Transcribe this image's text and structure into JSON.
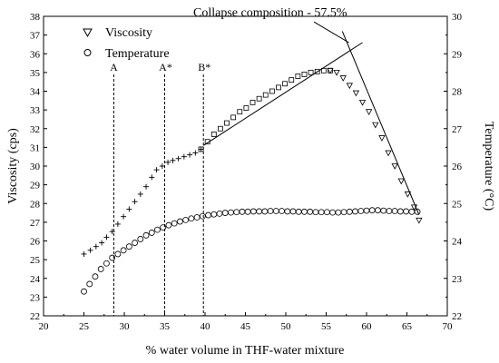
{
  "chart_data": {
    "type": "scatter",
    "xlabel": "% water volume in THF-water mixture",
    "ylabel_left": "Viscosity (cps)",
    "ylabel_right": "Temperature (°C)",
    "xlim": [
      20,
      70
    ],
    "ylim_left": [
      22,
      38
    ],
    "ylim_right": [
      22,
      30
    ],
    "x_ticks": [
      20,
      25,
      30,
      35,
      40,
      45,
      50,
      55,
      60,
      65,
      70
    ],
    "y_left_ticks": [
      22,
      23,
      24,
      25,
      26,
      27,
      28,
      29,
      30,
      31,
      32,
      33,
      34,
      35,
      36,
      37,
      38
    ],
    "y_right_ticks": [
      22,
      23,
      24,
      25,
      26,
      27,
      28,
      29,
      30
    ],
    "grid": false,
    "legend": [
      {
        "label": "Viscosity",
        "marker": "triangle-down"
      },
      {
        "label": "Temperature",
        "marker": "circle"
      }
    ],
    "legend_position": "top-left",
    "series": [
      {
        "name": "Viscosity",
        "axis": "left",
        "segments": [
          {
            "marker": "plus",
            "x": [
              25.0,
              25.8,
              26.5,
              27.2,
              27.8,
              28.5,
              29.2,
              29.9,
              30.6,
              31.3,
              32.0,
              32.7,
              33.4,
              34.0,
              34.7,
              35.4,
              36.0,
              36.7,
              37.4,
              38.1,
              38.8,
              39.5
            ],
            "y": [
              25.3,
              25.5,
              25.7,
              25.9,
              26.2,
              26.5,
              26.9,
              27.3,
              27.7,
              28.1,
              28.5,
              28.9,
              29.4,
              29.8,
              30.0,
              30.2,
              30.3,
              30.4,
              30.5,
              30.6,
              30.7,
              30.9
            ]
          },
          {
            "marker": "square",
            "x": [
              39.5,
              40.3,
              41.1,
              41.9,
              42.7,
              43.5,
              44.3,
              45.1,
              45.9,
              46.7,
              47.5,
              48.3,
              49.1,
              49.9,
              50.7,
              51.5,
              52.3,
              53.1,
              53.9,
              54.7,
              55.5
            ],
            "y": [
              30.9,
              31.3,
              31.7,
              32.0,
              32.3,
              32.6,
              32.9,
              33.1,
              33.4,
              33.6,
              33.8,
              34.0,
              34.2,
              34.4,
              34.6,
              34.8,
              34.9,
              35.0,
              35.05,
              35.1,
              35.1
            ]
          },
          {
            "marker": "triangle-down",
            "x": [
              55.5,
              56.3,
              57.1,
              57.9,
              58.7,
              59.5,
              60.3,
              61.1,
              61.9,
              62.7,
              63.5,
              64.3,
              65.1,
              65.9,
              66.5
            ],
            "y": [
              35.1,
              35.0,
              34.7,
              34.3,
              33.9,
              33.4,
              32.9,
              32.2,
              31.5,
              30.7,
              30.0,
              29.2,
              28.5,
              27.8,
              27.1
            ]
          }
        ]
      },
      {
        "name": "Temperature",
        "axis": "right",
        "marker": "circle",
        "x": [
          25.0,
          25.7,
          26.4,
          27.1,
          27.8,
          28.5,
          29.2,
          29.9,
          30.6,
          31.3,
          32.0,
          32.7,
          33.4,
          34.1,
          34.8,
          35.5,
          36.2,
          36.9,
          37.6,
          38.3,
          39.0,
          39.7,
          40.4,
          41.1,
          41.8,
          42.5,
          43.2,
          43.9,
          44.6,
          45.3,
          46.0,
          46.7,
          47.4,
          48.1,
          48.8,
          49.5,
          50.2,
          50.9,
          51.6,
          52.3,
          53.0,
          53.7,
          54.4,
          55.1,
          55.8,
          56.5,
          57.2,
          57.9,
          58.6,
          59.3,
          60.0,
          60.7,
          61.4,
          62.1,
          62.8,
          63.5,
          64.2,
          64.9,
          65.6,
          66.3
        ],
        "y": [
          22.65,
          22.85,
          23.05,
          23.25,
          23.4,
          23.55,
          23.65,
          23.75,
          23.85,
          23.95,
          24.05,
          24.15,
          24.22,
          24.3,
          24.36,
          24.42,
          24.47,
          24.52,
          24.56,
          24.6,
          24.63,
          24.66,
          24.69,
          24.71,
          24.73,
          24.75,
          24.76,
          24.77,
          24.78,
          24.78,
          24.79,
          24.79,
          24.79,
          24.8,
          24.8,
          24.8,
          24.79,
          24.79,
          24.78,
          24.78,
          24.78,
          24.77,
          24.77,
          24.77,
          24.76,
          24.76,
          24.77,
          24.78,
          24.79,
          24.8,
          24.81,
          24.82,
          24.82,
          24.81,
          24.8,
          24.8,
          24.79,
          24.79,
          24.78,
          24.78
        ]
      }
    ],
    "annotations": {
      "vlines": [
        {
          "label": "A",
          "x": 28.7
        },
        {
          "label": "A*",
          "x": 35.0
        },
        {
          "label": "B*",
          "x": 39.8
        }
      ],
      "collapse": {
        "label": "Collapse composition - 57.5%",
        "fit_line_1": {
          "x": [
            39.8,
            59.5
          ],
          "y": [
            31.1,
            36.6
          ]
        },
        "fit_line_2": {
          "x": [
            57.0,
            66.5
          ],
          "y": [
            37.2,
            27.4
          ]
        },
        "pointer": {
          "x": [
            53.5,
            57.8
          ],
          "y": [
            37.7,
            36.6
          ]
        }
      }
    }
  }
}
